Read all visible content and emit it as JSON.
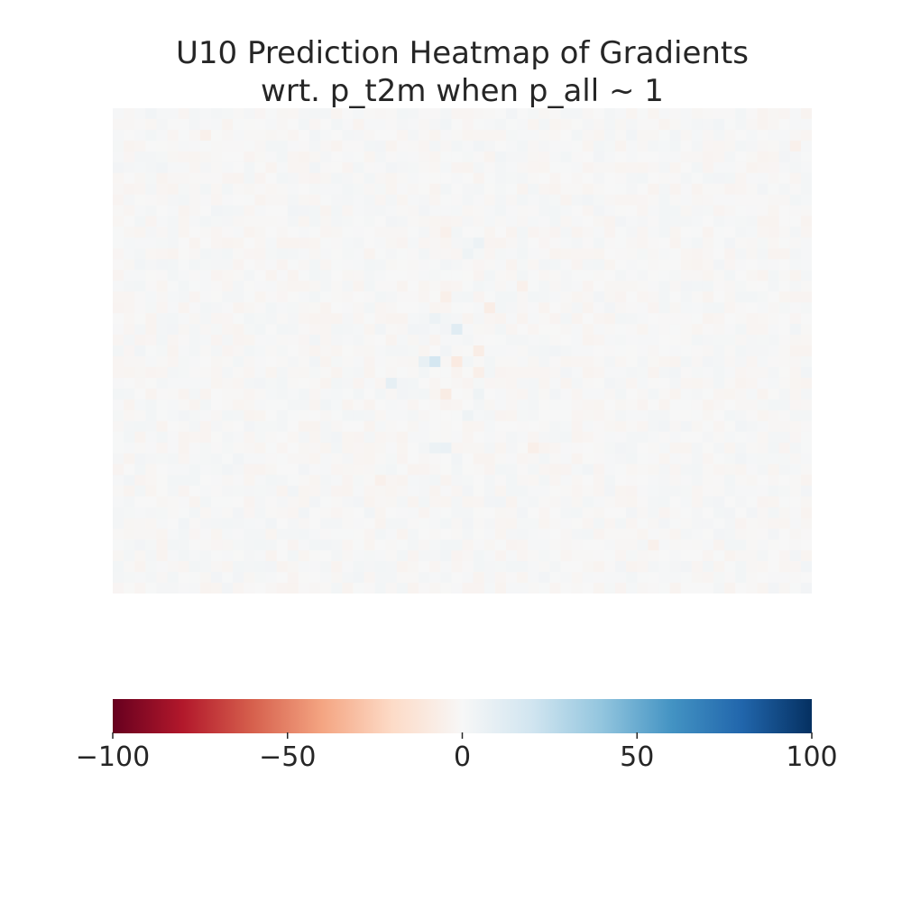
{
  "chart_data": {
    "type": "heatmap",
    "title": "U10 Prediction Heatmap of Gradients\nwrt. p_t2m when p_all ~ 1",
    "title_lines": [
      "U10 Prediction Heatmap of Gradients",
      "wrt. p_t2m when p_all ~ 1"
    ],
    "xlabel": "",
    "ylabel": "",
    "colormap": "RdBu",
    "value_range": [
      -100,
      100
    ],
    "colorbar": {
      "orientation": "horizontal",
      "placement": "bottom",
      "ticks": [
        -100,
        -50,
        0,
        50,
        100
      ],
      "tick_labels": [
        "−100",
        "−50",
        "0",
        "50",
        "100"
      ]
    },
    "grid_shape": [
      45,
      64
    ],
    "noise_amplitude": 3,
    "notable_cells": [
      {
        "row": 23,
        "col": 29,
        "value": 18
      },
      {
        "row": 20,
        "col": 31,
        "value": 12
      },
      {
        "row": 19,
        "col": 29,
        "value": 6
      },
      {
        "row": 23,
        "col": 28,
        "value": 8
      },
      {
        "row": 25,
        "col": 25,
        "value": 9
      },
      {
        "row": 31,
        "col": 30,
        "value": 7
      },
      {
        "row": 31,
        "col": 29,
        "value": 6
      },
      {
        "row": 12,
        "col": 33,
        "value": 6
      },
      {
        "row": 13,
        "col": 32,
        "value": 5
      },
      {
        "row": 28,
        "col": 32,
        "value": 5
      },
      {
        "row": 26,
        "col": 33,
        "value": 5
      },
      {
        "row": 22,
        "col": 33,
        "value": -7
      },
      {
        "row": 23,
        "col": 31,
        "value": -9
      },
      {
        "row": 24,
        "col": 33,
        "value": -6
      },
      {
        "row": 26,
        "col": 30,
        "value": -8
      },
      {
        "row": 18,
        "col": 34,
        "value": -7
      },
      {
        "row": 17,
        "col": 30,
        "value": -6
      },
      {
        "row": 16,
        "col": 37,
        "value": -5
      },
      {
        "row": 31,
        "col": 38,
        "value": -6
      },
      {
        "row": 11,
        "col": 30,
        "value": -5
      },
      {
        "row": 2,
        "col": 8,
        "value": -5
      },
      {
        "row": 3,
        "col": 62,
        "value": -5
      },
      {
        "row": 34,
        "col": 24,
        "value": -5
      },
      {
        "row": 40,
        "col": 49,
        "value": -5
      }
    ]
  }
}
